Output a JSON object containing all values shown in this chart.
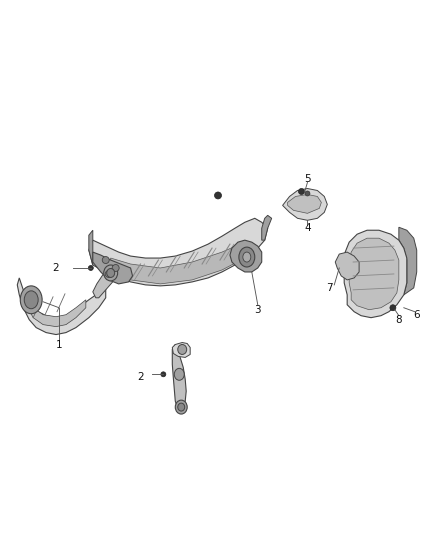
{
  "background_color": "#ffffff",
  "fig_width": 4.38,
  "fig_height": 5.33,
  "dpi": 100,
  "line_color": "#444444",
  "fill_light": "#d8d8d8",
  "fill_mid": "#c0c0c0",
  "fill_dark": "#a0a0a0",
  "fill_darker": "#888888",
  "label_fontsize": 7.5,
  "label_color": "#111111"
}
